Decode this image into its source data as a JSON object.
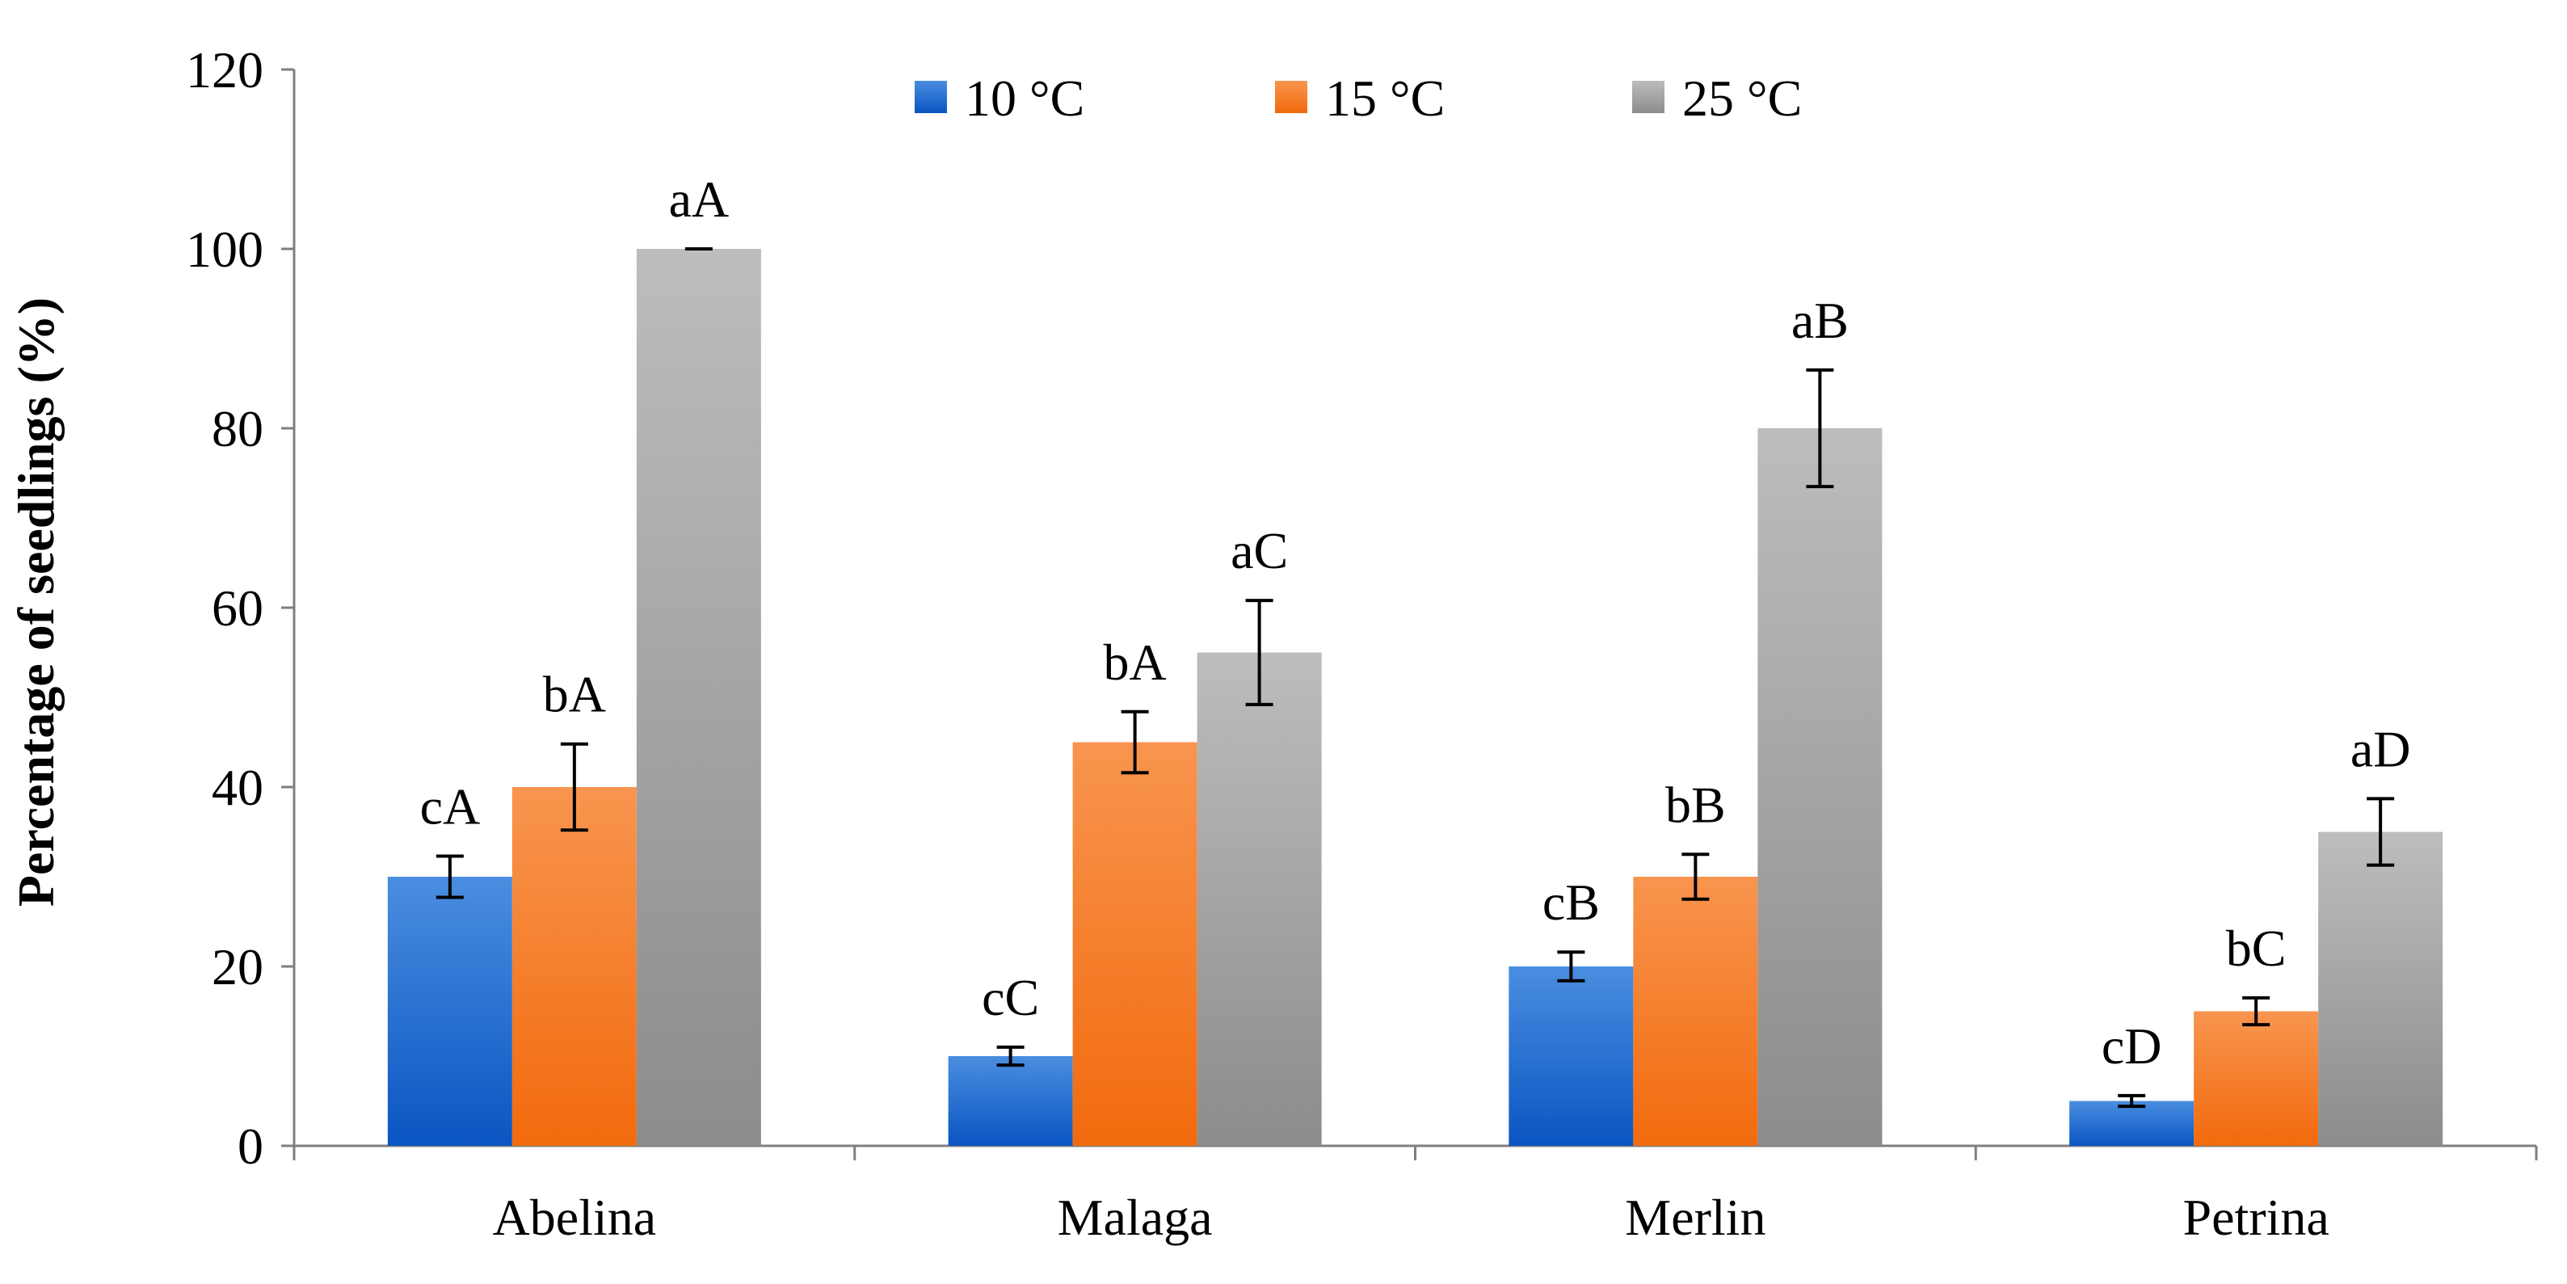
{
  "chart_data": {
    "type": "bar",
    "title": "",
    "xlabel": "",
    "ylabel": "Percentage of seedlings (%)",
    "ylim": [
      0,
      120
    ],
    "yticks": [
      0,
      20,
      40,
      60,
      80,
      100,
      120
    ],
    "grid": false,
    "legend_position": "top-center",
    "categories": [
      "Abelina",
      "Malaga",
      "Merlin",
      "Petrina"
    ],
    "series": [
      {
        "name": "10 °C",
        "color": "#1f6fd6",
        "color_dark": "#0a55c2",
        "color_light": "#4a8ee0",
        "values": [
          30,
          10,
          20,
          5
        ],
        "errors": [
          2.3,
          1.0,
          1.6,
          0.6
        ],
        "labels": [
          "cA",
          "cC",
          "cB",
          "cD"
        ]
      },
      {
        "name": "15 °C",
        "color": "#f07a2a",
        "color_dark": "#f26a0d",
        "color_light": "#f8954f",
        "values": [
          40,
          45,
          30,
          15
        ],
        "errors": [
          4.8,
          3.4,
          2.5,
          1.5
        ],
        "labels": [
          "bA",
          "bA",
          "bB",
          "bC"
        ]
      },
      {
        "name": "25 °C",
        "color": "#a6a6a6",
        "color_dark": "#8c8c8c",
        "color_light": "#bdbdbd",
        "values": [
          100,
          55,
          80,
          35
        ],
        "errors": [
          0.0,
          5.8,
          6.5,
          3.7
        ],
        "labels": [
          "aA",
          "aC",
          "aB",
          "aD"
        ]
      }
    ]
  }
}
